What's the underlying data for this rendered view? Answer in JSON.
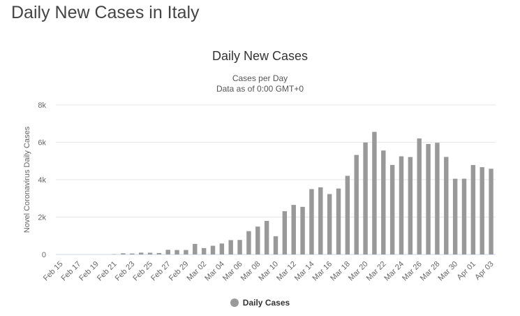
{
  "page": {
    "heading": "Daily New Cases in Italy"
  },
  "chart_data": {
    "type": "bar",
    "title": "Daily New Cases",
    "subtitle_lines": [
      "Cases per Day",
      "Data as of 0:00 GMT+0"
    ],
    "ylabel": "Novel Coronavirus Daily Cases",
    "xlabel": "",
    "ylim": [
      0,
      8000
    ],
    "y_ticks": [
      0,
      2000,
      4000,
      6000,
      8000
    ],
    "y_tick_labels": [
      "0",
      "2k",
      "4k",
      "6k",
      "8k"
    ],
    "grid": true,
    "legend_position": "bottom-center",
    "bar_color": "#999999",
    "categories": [
      "Feb 15",
      "Feb 16",
      "Feb 17",
      "Feb 18",
      "Feb 19",
      "Feb 20",
      "Feb 21",
      "Feb 22",
      "Feb 23",
      "Feb 24",
      "Feb 25",
      "Feb 26",
      "Feb 27",
      "Feb 28",
      "Feb 29",
      "Mar 01",
      "Mar 02",
      "Mar 03",
      "Mar 04",
      "Mar 05",
      "Mar 06",
      "Mar 07",
      "Mar 08",
      "Mar 09",
      "Mar 10",
      "Mar 11",
      "Mar 12",
      "Mar 13",
      "Mar 14",
      "Mar 15",
      "Mar 16",
      "Mar 17",
      "Mar 18",
      "Mar 19",
      "Mar 20",
      "Mar 21",
      "Mar 22",
      "Mar 23",
      "Mar 24",
      "Mar 25",
      "Mar 26",
      "Mar 27",
      "Mar 28",
      "Mar 29",
      "Mar 30",
      "Mar 31",
      "Apr 01",
      "Apr 02",
      "Apr 03"
    ],
    "tick_labels": [
      "Feb 15",
      "Feb 17",
      "Feb 19",
      "Feb 21",
      "Feb 23",
      "Feb 25",
      "Feb 27",
      "Feb 29",
      "Mar 02",
      "Mar 04",
      "Mar 06",
      "Mar 08",
      "Mar 10",
      "Mar 12",
      "Mar 14",
      "Mar 16",
      "Mar 18",
      "Mar 20",
      "Mar 22",
      "Mar 24",
      "Mar 26",
      "Mar 28",
      "Mar 30",
      "Apr 01",
      "Apr 03"
    ],
    "series": [
      {
        "name": "Daily Cases",
        "values": [
          0,
          0,
          0,
          0,
          0,
          0,
          17,
          62,
          53,
          97,
          93,
          78,
          250,
          238,
          240,
          566,
          342,
          466,
          587,
          769,
          778,
          1247,
          1492,
          1797,
          977,
          2313,
          2651,
          2547,
          3497,
          3590,
          3233,
          3526,
          4207,
          5322,
          5986,
          6557,
          5560,
          4789,
          5249,
          5210,
          6203,
          5909,
          5974,
          5217,
          4050,
          4053,
          4782,
          4668,
          4585
        ]
      }
    ]
  }
}
